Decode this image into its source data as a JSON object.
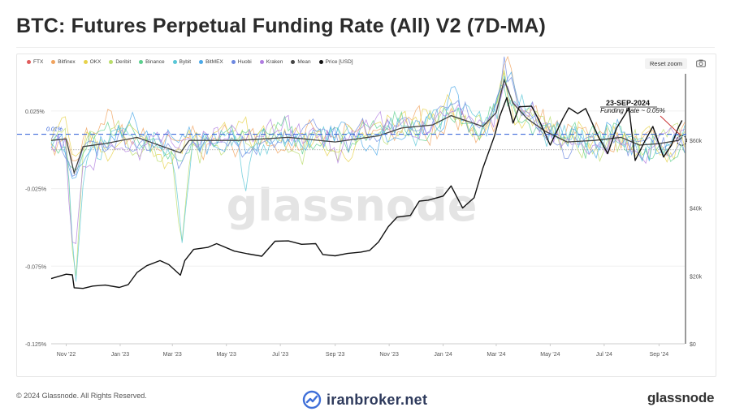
{
  "header": {
    "title": "BTC: Futures Perpetual Funding Rate (All) V2 (7D-MA)"
  },
  "toolbar": {
    "reset_zoom_label": "Reset zoom",
    "camera_icon": "camera-icon"
  },
  "legend": [
    {
      "label": "FTX",
      "color": "#e05c5c"
    },
    {
      "label": "Bitfinex",
      "color": "#f0a35e"
    },
    {
      "label": "OKX",
      "color": "#e7d24a"
    },
    {
      "label": "Deribit",
      "color": "#b9dc6a"
    },
    {
      "label": "Binance",
      "color": "#5bcf8d"
    },
    {
      "label": "Bybit",
      "color": "#58c6d6"
    },
    {
      "label": "BitMEX",
      "color": "#4aa8e8"
    },
    {
      "label": "Huobi",
      "color": "#6d88e0"
    },
    {
      "label": "Kraken",
      "color": "#b07ce0"
    },
    {
      "label": "Mean",
      "color": "#444444"
    },
    {
      "label": "Price [USD]",
      "color": "#111111"
    }
  ],
  "annotation": {
    "date": "23-SEP-2024",
    "text": "Funding Rate ~ 0.05%",
    "ref_label": "0.01%"
  },
  "watermark": "glassnode",
  "footer": {
    "copyright": "© 2024 Glassnode. All Rights Reserved.",
    "brand": "iranbroker.net",
    "logo": "glassnode"
  },
  "chart_data": {
    "type": "line",
    "title": "BTC: Futures Perpetual Funding Rate (All) V2 (7D-MA)",
    "x_tick_labels": [
      "Nov '22",
      "Jan '23",
      "Mar '23",
      "May '23",
      "Jul '23",
      "Sep '23",
      "Nov '23",
      "Jan '24",
      "Mar '24",
      "May '24",
      "Jul '24",
      "Sep '24"
    ],
    "y_left_tick_labels": [
      "0.025%",
      "-0.025%",
      "-0.075%",
      "-0.125%"
    ],
    "y_left_ticks": [
      0.025,
      -0.025,
      -0.075,
      -0.125
    ],
    "y_right_tick_labels": [
      "$60k",
      "$40k",
      "$20k",
      "$0"
    ],
    "y_right_ticks": [
      60000,
      40000,
      20000,
      0
    ],
    "ylim_left": [
      -0.125,
      0.05
    ],
    "ylim_right": [
      0,
      80000
    ],
    "x_range": [
      "2022-10-15",
      "2024-09-30"
    ],
    "reference_line": 0.01,
    "grid": "horizontal",
    "legend_position": "top-left",
    "series": [
      {
        "name": "Price [USD]",
        "axis": "right",
        "dates": [
          "2022-10-15",
          "2022-11-01",
          "2022-11-08",
          "2022-11-10",
          "2022-11-20",
          "2022-12-01",
          "2022-12-15",
          "2022-12-31",
          "2023-01-10",
          "2023-01-20",
          "2023-01-31",
          "2023-02-15",
          "2023-02-25",
          "2023-03-10",
          "2023-03-15",
          "2023-03-25",
          "2023-04-10",
          "2023-04-20",
          "2023-05-10",
          "2023-05-25",
          "2023-06-10",
          "2023-06-25",
          "2023-07-10",
          "2023-07-25",
          "2023-08-10",
          "2023-08-18",
          "2023-09-01",
          "2023-09-15",
          "2023-09-30",
          "2023-10-10",
          "2023-10-20",
          "2023-10-31",
          "2023-11-10",
          "2023-11-25",
          "2023-12-05",
          "2023-12-15",
          "2024-01-01",
          "2024-01-10",
          "2024-01-23",
          "2024-02-05",
          "2024-02-15",
          "2024-02-28",
          "2024-03-05",
          "2024-03-13",
          "2024-03-20",
          "2024-03-27",
          "2024-04-10",
          "2024-04-20",
          "2024-05-01",
          "2024-05-15",
          "2024-05-22",
          "2024-06-01",
          "2024-06-10",
          "2024-06-24",
          "2024-07-05",
          "2024-07-15",
          "2024-07-29",
          "2024-08-05",
          "2024-08-15",
          "2024-08-25",
          "2024-09-06",
          "2024-09-15",
          "2024-09-23",
          "2024-09-27"
        ],
        "values": [
          19200,
          20500,
          20300,
          16500,
          16300,
          17000,
          17300,
          16600,
          17400,
          21000,
          23000,
          24500,
          23300,
          20200,
          24500,
          27800,
          28400,
          29500,
          27300,
          26500,
          25800,
          30200,
          30300,
          29300,
          29500,
          26300,
          25900,
          26600,
          27000,
          27500,
          30000,
          34500,
          37300,
          37800,
          42000,
          42300,
          43500,
          46500,
          40000,
          43000,
          51800,
          61200,
          67000,
          72500,
          65000,
          69800,
          70000,
          65000,
          58500,
          66200,
          69500,
          67800,
          69300,
          61300,
          56000,
          63500,
          69500,
          54000,
          59200,
          64000,
          55000,
          58500,
          63800,
          65800
        ]
      },
      {
        "name": "Mean",
        "axis": "left",
        "dates": [
          "2022-10-15",
          "2022-11-01",
          "2022-11-10",
          "2022-11-20",
          "2022-12-15",
          "2023-01-20",
          "2023-03-10",
          "2023-03-20",
          "2023-05-15",
          "2023-07-10",
          "2023-09-01",
          "2023-10-20",
          "2023-11-15",
          "2023-12-20",
          "2024-01-10",
          "2024-02-15",
          "2024-03-01",
          "2024-03-10",
          "2024-03-20",
          "2024-04-05",
          "2024-04-25",
          "2024-05-20",
          "2024-06-20",
          "2024-07-20",
          "2024-08-10",
          "2024-09-01",
          "2024-09-23",
          "2024-09-27"
        ],
        "values": [
          0.006,
          0.007,
          -0.015,
          0.002,
          0.004,
          0.008,
          -0.002,
          0.006,
          0.006,
          0.008,
          0.005,
          0.009,
          0.014,
          0.016,
          0.022,
          0.015,
          0.024,
          0.045,
          0.03,
          0.02,
          0.012,
          0.005,
          0.006,
          0.008,
          0.003,
          0.004,
          0.006,
          0.008
        ]
      }
    ]
  }
}
